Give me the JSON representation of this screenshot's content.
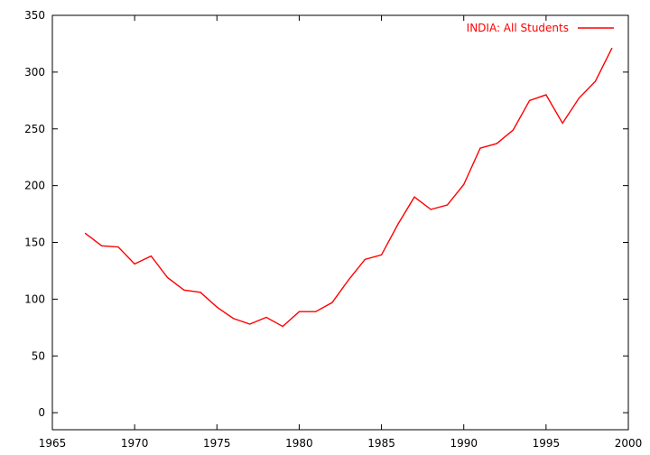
{
  "chart_data": {
    "type": "line",
    "title": "",
    "xlabel": "",
    "ylabel": "",
    "xlim": [
      1965,
      2000
    ],
    "ylim": [
      -15,
      350
    ],
    "x_ticks": [
      1965,
      1970,
      1975,
      1980,
      1985,
      1990,
      1995,
      2000
    ],
    "y_ticks": [
      0,
      50,
      100,
      150,
      200,
      250,
      300,
      350
    ],
    "grid": false,
    "legend_position": "top-right",
    "series": [
      {
        "name": "INDIA: All Students",
        "color": "#ff0000",
        "x": [
          1967,
          1968,
          1969,
          1970,
          1971,
          1972,
          1973,
          1974,
          1975,
          1976,
          1977,
          1978,
          1979,
          1980,
          1981,
          1982,
          1983,
          1984,
          1985,
          1986,
          1987,
          1988,
          1989,
          1990,
          1991,
          1992,
          1993,
          1994,
          1995,
          1996,
          1997,
          1998,
          1999
        ],
        "y": [
          158,
          147,
          146,
          131,
          138,
          119,
          108,
          106,
          93,
          83,
          78,
          84,
          76,
          89,
          89,
          97,
          117,
          135,
          139,
          166,
          190,
          179,
          183,
          201,
          233,
          237,
          249,
          275,
          280,
          255,
          277,
          292,
          321
        ]
      }
    ]
  }
}
